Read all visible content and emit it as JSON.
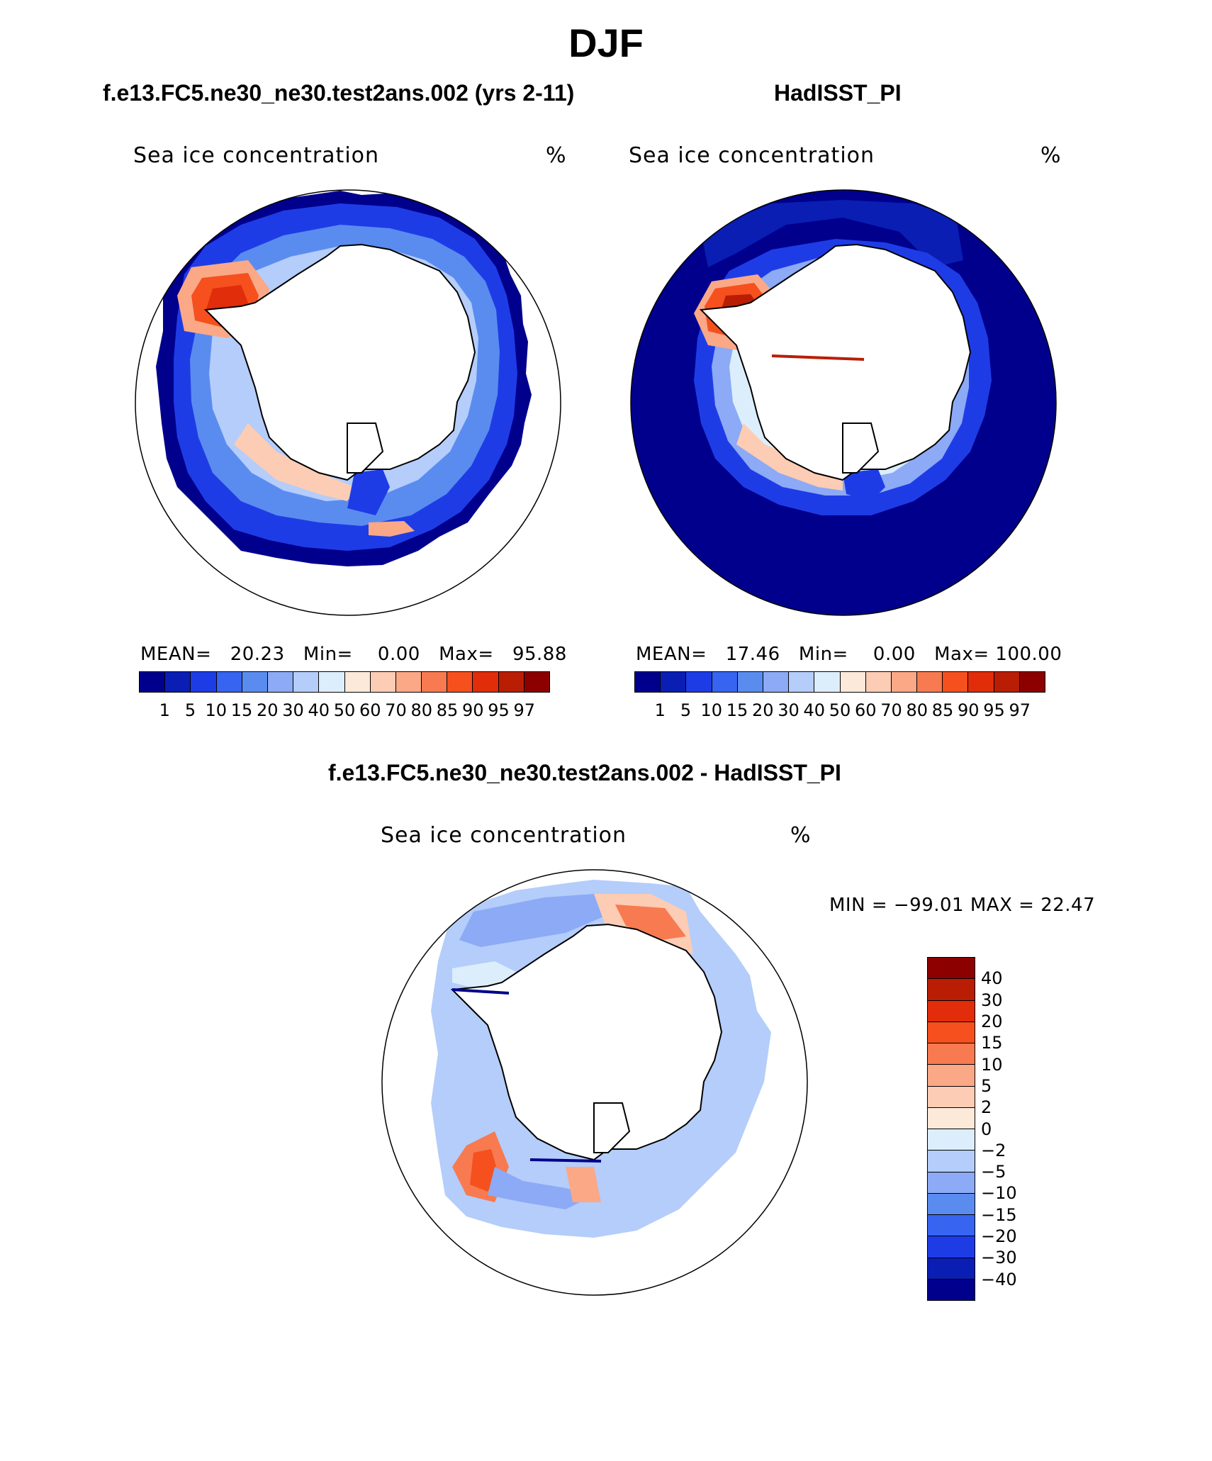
{
  "title": "DJF",
  "colors": {
    "ice_levels": [
      "#00008c",
      "#0a1eb4",
      "#1e3ce6",
      "#3764f0",
      "#5a8cf0",
      "#8caaf5",
      "#b4cdfa",
      "#dceefc",
      "#fde9d9",
      "#fcccb4",
      "#fba887",
      "#f87a50",
      "#f5501e",
      "#e12d0a",
      "#b91e05",
      "#8c0000"
    ],
    "diff_levels": [
      "#8c0000",
      "#b91e05",
      "#e12d0a",
      "#f5501e",
      "#f87a50",
      "#fba887",
      "#fcccb4",
      "#fde9d9",
      "#dceefc",
      "#b4cdfa",
      "#8caaf5",
      "#5a8cf0",
      "#3764f0",
      "#1e3ce6",
      "#0a1eb4",
      "#00008c"
    ]
  },
  "panels": [
    {
      "id": "model",
      "title": "f.e13.FC5.ne30_ne30.test2ans.002 (yrs 2-11)",
      "variable": "Sea ice concentration",
      "units": "%",
      "stats": {
        "mean_label": "MEAN=",
        "mean": "20.23",
        "min_label": "Min=",
        "min": "0.00",
        "max_label": "Max=",
        "max": "95.88"
      }
    },
    {
      "id": "obs",
      "title": "HadISST_PI",
      "variable": "Sea ice concentration",
      "units": "%",
      "stats": {
        "mean_label": "MEAN=",
        "mean": "17.46",
        "min_label": "Min=",
        "min": "0.00",
        "max_label": "Max=",
        "max": "100.00"
      }
    },
    {
      "id": "diff",
      "title": "f.e13.FC5.ne30_ne30.test2ans.002 - HadISST_PI",
      "variable": "Sea ice concentration",
      "units": "%",
      "stats": {
        "text": "MIN = −99.01  MAX =   22.47"
      }
    }
  ],
  "colorbar_ice": {
    "ticks": [
      "1",
      "5",
      "10",
      "15",
      "20",
      "30",
      "40",
      "50",
      "60",
      "70",
      "80",
      "85",
      "90",
      "95",
      "97"
    ]
  },
  "colorbar_diff": {
    "ticks": [
      "40",
      "30",
      "20",
      "15",
      "10",
      "5",
      "2",
      "0",
      "−2",
      "−5",
      "−10",
      "−15",
      "−20",
      "−30",
      "−40"
    ]
  }
}
